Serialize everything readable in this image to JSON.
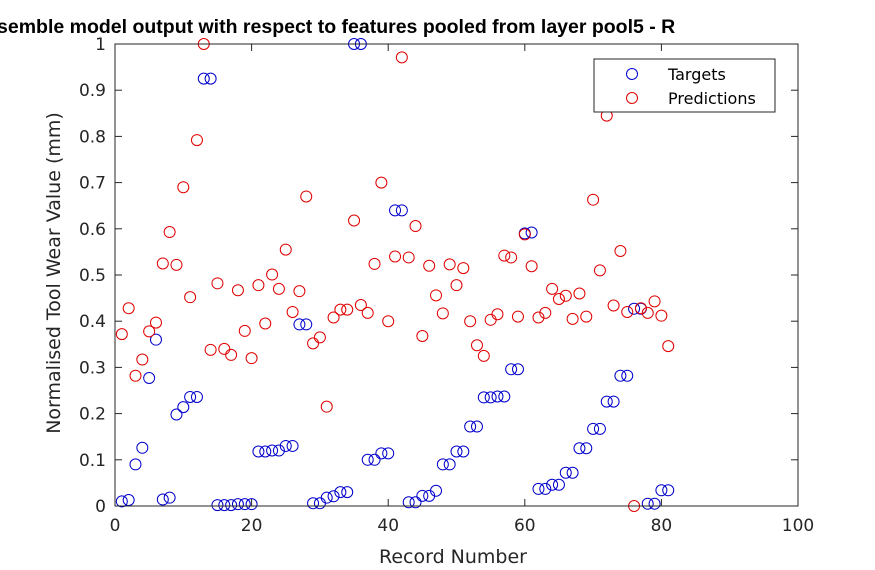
{
  "chart_data": {
    "type": "scatter",
    "title": "semble model output with respect to features pooled from layer pool5 - R",
    "xlabel": "Record Number",
    "ylabel": "Normalised Tool Wear Value (mm)",
    "xlim": [
      0,
      100
    ],
    "ylim": [
      0,
      1
    ],
    "xticks": [
      0,
      20,
      40,
      60,
      80,
      100
    ],
    "xtick_labels": [
      "0",
      "20",
      "40",
      "60",
      "80",
      "100"
    ],
    "yticks": [
      0,
      0.1,
      0.2,
      0.3,
      0.4,
      0.5,
      0.6,
      0.7,
      0.8,
      0.9,
      1
    ],
    "ytick_labels": [
      "0",
      "0.1",
      "0.2",
      "0.3",
      "0.4",
      "0.5",
      "0.6",
      "0.7",
      "0.8",
      "0.9",
      "1"
    ],
    "grid": false,
    "legend_position": "top-right",
    "series": [
      {
        "name": "Targets",
        "color": "#0000cc",
        "x": [
          1,
          2,
          3,
          4,
          5,
          6,
          7,
          8,
          9,
          10,
          11,
          12,
          13,
          14,
          15,
          16,
          17,
          18,
          19,
          20,
          21,
          22,
          23,
          24,
          25,
          26,
          27,
          28,
          29,
          30,
          31,
          32,
          33,
          34,
          35,
          36,
          37,
          38,
          39,
          40,
          41,
          42,
          43,
          44,
          45,
          46,
          47,
          48,
          49,
          50,
          51,
          52,
          53,
          54,
          55,
          56,
          57,
          58,
          59,
          60,
          61,
          62,
          63,
          64,
          65,
          66,
          67,
          68,
          69,
          70,
          71,
          72,
          73,
          74,
          75,
          76,
          77,
          78,
          79,
          80,
          81
        ],
        "y": [
          0.01,
          0.013,
          0.09,
          0.126,
          0.277,
          0.36,
          0.014,
          0.018,
          0.198,
          0.214,
          0.236,
          0.236,
          0.925,
          0.925,
          0.002,
          0.002,
          0.002,
          0.004,
          0.004,
          0.004,
          0.118,
          0.118,
          0.12,
          0.12,
          0.13,
          0.13,
          0.393,
          0.393,
          0.006,
          0.006,
          0.018,
          0.021,
          0.03,
          0.03,
          1.0,
          1.0,
          0.1,
          0.1,
          0.114,
          0.114,
          0.64,
          0.64,
          0.008,
          0.008,
          0.022,
          0.022,
          0.033,
          0.09,
          0.09,
          0.118,
          0.118,
          0.172,
          0.172,
          0.235,
          0.235,
          0.237,
          0.237,
          0.296,
          0.296,
          0.59,
          0.592,
          0.037,
          0.037,
          0.046,
          0.046,
          0.072,
          0.072,
          0.125,
          0.125,
          0.167,
          0.167,
          0.226,
          0.226,
          0.282,
          0.282,
          0.427,
          0.427,
          0.005,
          0.005,
          0.034,
          0.034
        ]
      },
      {
        "name": "Predictions",
        "color": "#e00000",
        "x": [
          1,
          2,
          3,
          4,
          5,
          6,
          7,
          8,
          9,
          10,
          11,
          12,
          13,
          14,
          15,
          16,
          17,
          18,
          19,
          20,
          21,
          22,
          23,
          24,
          25,
          26,
          27,
          28,
          29,
          30,
          31,
          32,
          33,
          34,
          35,
          36,
          37,
          38,
          39,
          40,
          41,
          42,
          43,
          44,
          45,
          46,
          47,
          48,
          49,
          50,
          51,
          52,
          53,
          54,
          55,
          56,
          57,
          58,
          59,
          60,
          61,
          62,
          63,
          64,
          65,
          66,
          67,
          68,
          69,
          70,
          71,
          72,
          73,
          74,
          75,
          76,
          77,
          78,
          79,
          80,
          81
        ],
        "y": [
          0.372,
          0.428,
          0.282,
          0.317,
          0.378,
          0.397,
          0.525,
          0.593,
          0.522,
          0.69,
          0.452,
          0.792,
          1.0,
          0.338,
          0.482,
          0.34,
          0.327,
          0.467,
          0.379,
          0.32,
          0.478,
          0.395,
          0.501,
          0.47,
          0.555,
          0.42,
          0.465,
          0.67,
          0.352,
          0.365,
          0.215,
          0.408,
          0.425,
          0.425,
          0.618,
          0.435,
          0.418,
          0.524,
          0.7,
          0.4,
          0.54,
          0.971,
          0.538,
          0.606,
          0.368,
          0.52,
          0.456,
          0.417,
          0.523,
          0.478,
          0.515,
          0.4,
          0.348,
          0.325,
          0.403,
          0.415,
          0.542,
          0.538,
          0.41,
          0.588,
          0.519,
          0.408,
          0.418,
          0.47,
          0.448,
          0.455,
          0.405,
          0.46,
          0.41,
          0.663,
          0.51,
          0.845,
          0.434,
          0.552,
          0.42,
          0.0,
          0.428,
          0.418,
          0.443,
          0.412,
          0.346
        ]
      }
    ]
  }
}
